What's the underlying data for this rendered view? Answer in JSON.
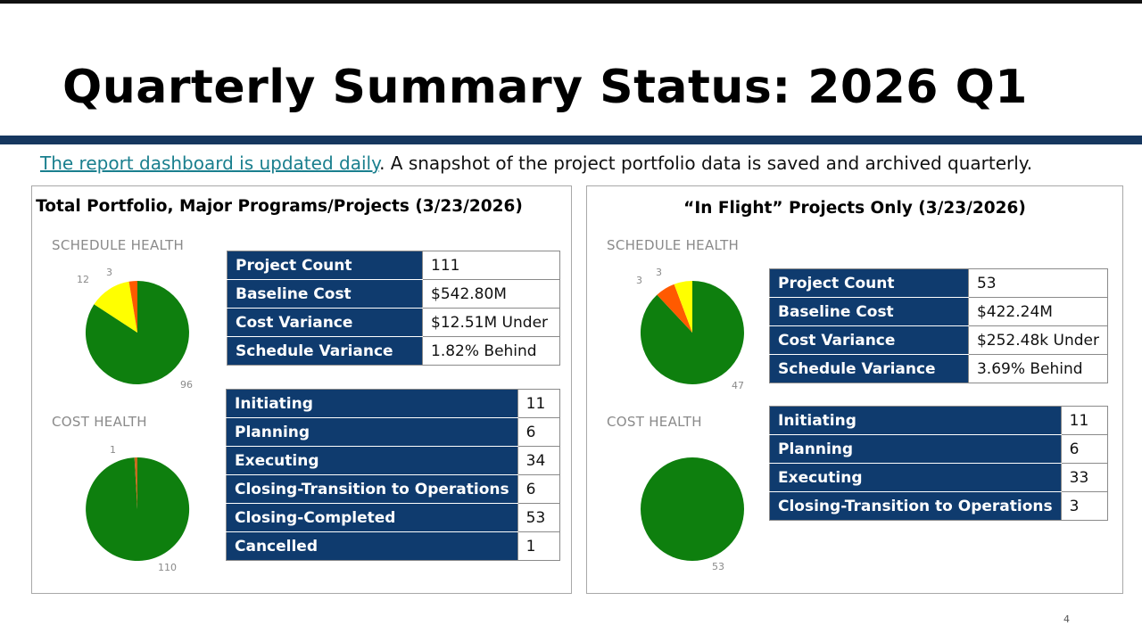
{
  "slide": {
    "title": "Quarterly Summary Status: 2026 Q1",
    "intro_link": "The report dashboard is updated daily",
    "intro_rest": ". A snapshot of the project portfolio data is saved and archived quarterly.",
    "page_number": "4"
  },
  "colors": {
    "green": "#0e7f0e",
    "yellow": "#ffff00",
    "orange": "#ff5a00",
    "navy": "#0f3b6e",
    "title_bar": "#16375f"
  },
  "left": {
    "title": "Total Portfolio, Major Programs/Projects (3/23/2026)",
    "schedule_label": "SCHEDULE HEALTH",
    "cost_label": "COST HEALTH",
    "schedule_pie": {
      "labels": [
        "96",
        "12",
        "3"
      ],
      "values": [
        96,
        12,
        3
      ]
    },
    "cost_pie": {
      "labels": [
        "110",
        "1"
      ],
      "values": [
        110,
        1
      ]
    },
    "summary": [
      {
        "label": "Project Count",
        "value": "111"
      },
      {
        "label": "Baseline Cost",
        "value": "$542.80M"
      },
      {
        "label": "Cost Variance",
        "value": "$12.51M Under"
      },
      {
        "label": "Schedule Variance",
        "value": "1.82% Behind"
      }
    ],
    "phases": [
      {
        "label": "Initiating",
        "value": "11"
      },
      {
        "label": "Planning",
        "value": "6"
      },
      {
        "label": "Executing",
        "value": "34"
      },
      {
        "label": "Closing-Transition to Operations",
        "value": "6"
      },
      {
        "label": "Closing-Completed",
        "value": "53"
      },
      {
        "label": "Cancelled",
        "value": "1"
      }
    ]
  },
  "right": {
    "title": "“In Flight” Projects Only (3/23/2026)",
    "schedule_label": "SCHEDULE HEALTH",
    "cost_label": "COST HEALTH",
    "schedule_pie": {
      "labels": [
        "47",
        "3",
        "3"
      ],
      "values": [
        47,
        3,
        3
      ]
    },
    "cost_pie": {
      "labels": [
        "53"
      ],
      "values": [
        53
      ]
    },
    "summary": [
      {
        "label": "Project Count",
        "value": "53"
      },
      {
        "label": "Baseline Cost",
        "value": "$422.24M"
      },
      {
        "label": "Cost Variance",
        "value": "$252.48k Under"
      },
      {
        "label": "Schedule Variance",
        "value": "3.69% Behind"
      }
    ],
    "phases": [
      {
        "label": "Initiating",
        "value": "11"
      },
      {
        "label": "Planning",
        "value": "6"
      },
      {
        "label": "Executing",
        "value": "33"
      },
      {
        "label": "Closing-Transition to Operations",
        "value": "3"
      }
    ]
  }
}
